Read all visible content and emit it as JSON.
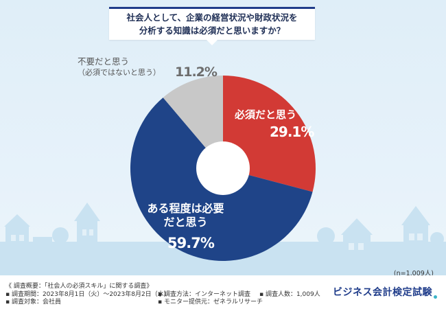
{
  "question": {
    "line1": "社会人として、企業の経営状況や財政状況を",
    "line2": "分析する知識は必須だと思いますか？"
  },
  "chart_data": {
    "type": "pie",
    "slices": [
      {
        "label": "必須だと思う",
        "value": 29.1,
        "display": "29.1%",
        "color": "#d23a35"
      },
      {
        "label": "ある程度は必要だと思う",
        "value": 59.7,
        "display": "59.7%",
        "color": "#1f4488"
      },
      {
        "label": "不要だと思う",
        "sublabel": "（必須ではないと思う）",
        "value": 11.2,
        "display": "11.2%",
        "color": "#c8c8c8"
      }
    ],
    "donut": true,
    "start": "12 o'clock, clockwise",
    "n_label": "(n=1,009人)"
  },
  "footer": {
    "overview": "《 調査概要：「社会人の必須スキル」に関する調査》",
    "period": "▪ 調査期間：2023年8月1日（火）～2023年8月2日（水）",
    "target": "▪ 調査対象：会社員",
    "method": "▪ 調査方法：インターネット調査",
    "provider": "▪ モニター提供元：ゼネラルリサーチ",
    "count": "▪ 調査人数：1,009人",
    "logo": "ビジネス会計検定試験"
  }
}
